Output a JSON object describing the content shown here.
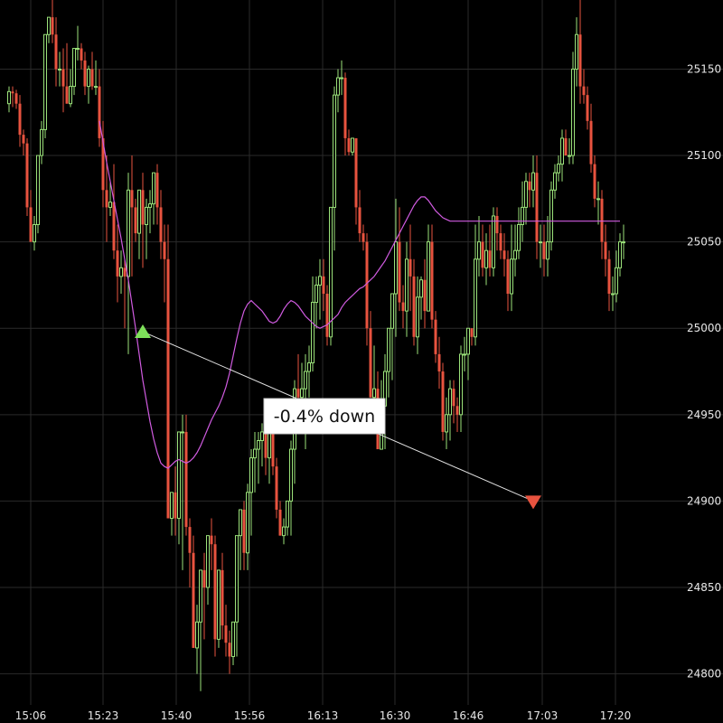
{
  "chart_data": {
    "type": "candlestick",
    "title": "",
    "xlabel": "",
    "ylabel": "",
    "ylim": [
      24782,
      25190
    ],
    "grid": true,
    "colors": {
      "background": "#000000",
      "grid": "#2a2a2a",
      "up": "#9be27a",
      "down": "#e8533f",
      "moving_average": "#d05be0",
      "signal_line": "#e0e0e0",
      "buy_marker": "#7ee05a",
      "sell_marker": "#e8533f"
    },
    "x_tick_labels": [
      "15:06",
      "15:23",
      "15:40",
      "15:56",
      "16:13",
      "16:30",
      "16:46",
      "17:03",
      "17:20"
    ],
    "y_ticks": [
      24800,
      24850,
      24900,
      24950,
      25000,
      25050,
      25100,
      25150
    ],
    "candles": {
      "time_index": [
        0,
        1,
        2,
        3,
        4,
        5,
        6,
        7,
        8,
        9,
        10,
        11,
        12,
        13,
        14,
        15,
        16,
        17,
        18,
        19,
        20,
        21,
        22,
        23,
        24,
        25,
        26,
        27,
        28,
        29,
        30,
        31,
        32,
        33,
        34,
        35,
        36,
        37,
        38,
        39,
        40,
        41,
        42,
        43,
        44,
        45,
        46,
        47,
        48,
        49,
        50,
        51,
        52,
        53,
        54,
        55,
        56,
        57,
        58,
        59,
        60,
        61,
        62,
        63,
        64,
        65,
        66,
        67,
        68,
        69,
        70,
        71,
        72,
        73,
        74,
        75,
        76,
        77,
        78,
        79,
        80,
        81,
        82,
        83,
        84,
        85,
        86,
        87,
        88,
        89,
        90,
        91,
        92,
        93,
        94,
        95,
        96,
        97,
        98,
        99,
        100,
        101,
        102,
        103,
        104,
        105,
        106,
        107,
        108,
        109,
        110,
        111,
        112,
        113,
        114,
        115,
        116,
        117,
        118,
        119,
        120,
        121,
        122,
        123,
        124,
        125,
        126,
        127,
        128,
        129,
        130,
        131,
        132,
        133,
        134,
        135,
        136,
        137,
        138,
        139,
        140,
        141,
        142,
        143,
        144,
        145,
        146,
        147,
        148,
        149,
        150,
        151,
        152,
        153,
        154,
        155,
        156,
        157,
        158,
        159,
        160,
        161,
        162,
        163,
        164,
        165,
        166,
        167,
        168,
        169,
        170
      ],
      "open": [
        25130,
        25137,
        25136,
        25130,
        25112,
        25107,
        25070,
        25050,
        25060,
        25100,
        25115,
        25170,
        25180,
        25170,
        25150,
        25150,
        25140,
        25130,
        25140,
        25162,
        25162,
        25155,
        25140,
        25150,
        25140,
        25140,
        25110,
        25080,
        25070,
        25073,
        25045,
        25030,
        25035,
        25030,
        25080,
        25070,
        25055,
        25080,
        25060,
        25070,
        25072,
        25090,
        25070,
        25050,
        25040,
        24890,
        24905,
        24890,
        24940,
        24940,
        24885,
        24870,
        24815,
        24830,
        24860,
        24850,
        24880,
        24875,
        24820,
        24860,
        24828,
        24818,
        24810,
        24830,
        24880,
        24895,
        24870,
        24905,
        24925,
        24930,
        24935,
        24940,
        24925,
        24943,
        24920,
        24895,
        24880,
        24885,
        24900,
        24930,
        24965,
        24960,
        24965,
        24975,
        24980,
        25015,
        25025,
        25030,
        25020,
        24995,
        25070,
        25135,
        25145,
        25145,
        25110,
        25102,
        25110,
        25070,
        25055,
        25050,
        25000,
        24960,
        24965,
        24930,
        24955,
        24975,
        25000,
        25020,
        25050,
        25015,
        25010,
        25040,
        25030,
        24995,
        25018,
        25028,
        25010,
        25050,
        25005,
        24985,
        24975,
        24940,
        24950,
        24965,
        24955,
        24950,
        24985,
        24985,
        25000,
        24995,
        25040,
        25050,
        25035,
        25045,
        25035,
        25065,
        25055,
        25045,
        25040,
        25020,
        25040,
        25045,
        25060,
        25070,
        25085,
        25080,
        25090,
        25050,
        25050,
        25040,
        25050,
        25080,
        25090,
        25095,
        25110,
        25100,
        25100,
        25150,
        25170,
        25140,
        25135,
        25120,
        25095,
        25075,
        25075,
        25050,
        25040,
        25020,
        25020,
        25035,
        25050
      ],
      "high": [
        25140,
        25140,
        25138,
        25135,
        25115,
        25110,
        25080,
        25065,
        25080,
        25120,
        25130,
        25180,
        25190,
        25180,
        25160,
        25162,
        25165,
        25150,
        25160,
        25175,
        25165,
        25160,
        25152,
        25160,
        25155,
        25150,
        25120,
        25100,
        25085,
        25095,
        25060,
        25045,
        25040,
        25090,
        25100,
        25075,
        25080,
        25090,
        25075,
        25080,
        25085,
        25095,
        25080,
        25060,
        25060,
        24900,
        24920,
        24900,
        24950,
        24950,
        24890,
        24880,
        24840,
        24850,
        24870,
        24870,
        24890,
        24880,
        24860,
        24870,
        24840,
        24825,
        24830,
        24880,
        24890,
        24900,
        24910,
        24930,
        24940,
        24940,
        24945,
        24945,
        24955,
        24950,
        24925,
        24900,
        24890,
        24890,
        24935,
        24970,
        24985,
        24980,
        24985,
        24990,
        25030,
        25030,
        25040,
        25040,
        25025,
        25070,
        25140,
        25150,
        25155,
        25148,
        25115,
        25110,
        25110,
        25080,
        25060,
        25055,
        25010,
        24990,
        24975,
        24970,
        24985,
        25000,
        25020,
        25075,
        25070,
        25025,
        25050,
        25060,
        25040,
        25030,
        25030,
        25040,
        25060,
        25060,
        25010,
        24995,
        24980,
        24960,
        24970,
        24970,
        24960,
        24990,
        24995,
        25000,
        25000,
        25060,
        25065,
        25060,
        25055,
        25060,
        25070,
        25070,
        25060,
        25055,
        25045,
        25060,
        25060,
        25070,
        25085,
        25090,
        25090,
        25100,
        25100,
        25060,
        25060,
        25065,
        25085,
        25095,
        25100,
        25115,
        25115,
        25110,
        25160,
        25180,
        25195,
        25150,
        25140,
        25130,
        25100,
        25085,
        25080,
        25060,
        25045,
        25030,
        25045,
        25055,
        25060
      ],
      "low": [
        25125,
        25128,
        25127,
        25105,
        25100,
        25065,
        25050,
        25045,
        25055,
        25095,
        25110,
        25165,
        25165,
        25140,
        25140,
        25125,
        25130,
        25128,
        25135,
        25155,
        25150,
        25135,
        25130,
        25138,
        25135,
        25105,
        25070,
        25050,
        25065,
        25040,
        25015,
        25020,
        25000,
        24985,
        25030,
        25050,
        25040,
        25035,
        25040,
        25055,
        25060,
        25060,
        25040,
        25015,
        24890,
        24880,
        24880,
        24875,
        24860,
        24880,
        24850,
        24815,
        24800,
        24790,
        24820,
        24840,
        24860,
        24810,
        24815,
        24820,
        24810,
        24800,
        24805,
        24810,
        24860,
        24860,
        24860,
        24880,
        24905,
        24910,
        24920,
        24915,
        24910,
        24915,
        24890,
        24880,
        24875,
        24880,
        24880,
        24910,
        24940,
        24950,
        24930,
        24960,
        24975,
        25000,
        25005,
        25010,
        24990,
        24990,
        25045,
        25125,
        25135,
        25100,
        25100,
        25100,
        25060,
        25050,
        25045,
        24990,
        24960,
        24950,
        24940,
        24930,
        24930,
        24960,
        24970,
        24995,
        25010,
        25000,
        24995,
        25010,
        24990,
        24985,
        25005,
        25000,
        25010,
        25000,
        24980,
        24965,
        24935,
        24930,
        24935,
        24945,
        24940,
        24940,
        24975,
        24970,
        24990,
        24990,
        25030,
        25030,
        25025,
        25030,
        25030,
        25045,
        25040,
        25030,
        25010,
        25010,
        25030,
        25040,
        25050,
        25060,
        25070,
        25070,
        25040,
        25035,
        25030,
        25030,
        25045,
        25075,
        25085,
        25085,
        25100,
        25095,
        25095,
        25140,
        25130,
        25130,
        25115,
        25090,
        25070,
        25060,
        25040,
        25030,
        25010,
        25010,
        25015,
        25030,
        25040
      ],
      "close": [
        25137,
        25136,
        25130,
        25112,
        25107,
        25070,
        25050,
        25060,
        25100,
        25115,
        25170,
        25180,
        25170,
        25150,
        25150,
        25140,
        25130,
        25140,
        25162,
        25162,
        25155,
        25140,
        25150,
        25140,
        25140,
        25110,
        25080,
        25070,
        25073,
        25045,
        25030,
        25035,
        25030,
        25080,
        25070,
        25055,
        25080,
        25060,
        25070,
        25072,
        25090,
        25070,
        25050,
        25040,
        24890,
        24905,
        24890,
        24940,
        24940,
        24885,
        24870,
        24815,
        24830,
        24860,
        24850,
        24880,
        24875,
        24820,
        24860,
        24828,
        24818,
        24810,
        24830,
        24880,
        24895,
        24870,
        24905,
        24925,
        24930,
        24935,
        24940,
        24925,
        24943,
        24920,
        24895,
        24880,
        24885,
        24900,
        24930,
        24965,
        24960,
        24965,
        24975,
        24980,
        25015,
        25025,
        25030,
        25020,
        24995,
        25070,
        25135,
        25145,
        25145,
        25110,
        25102,
        25110,
        25070,
        25055,
        25050,
        25000,
        24960,
        24965,
        24930,
        24955,
        24975,
        25000,
        25020,
        25050,
        25015,
        25010,
        25040,
        25030,
        24995,
        25018,
        25028,
        25010,
        25050,
        25005,
        24985,
        24975,
        24940,
        24950,
        24965,
        24955,
        24950,
        24985,
        24985,
        25000,
        24995,
        25040,
        25050,
        25035,
        25045,
        25035,
        25065,
        25055,
        25045,
        25040,
        25020,
        25040,
        25045,
        25060,
        25070,
        25085,
        25080,
        25090,
        25050,
        25050,
        25040,
        25050,
        25080,
        25090,
        25095,
        25110,
        25100,
        25100,
        25150,
        25170,
        25140,
        25135,
        25120,
        25095,
        25075,
        25075,
        25050,
        25040,
        25020,
        25020,
        25035,
        25050,
        25050
      ]
    },
    "moving_average": {
      "start_index": 25,
      "values": [
        25120,
        25108,
        25096,
        25085,
        25074,
        25063,
        25052,
        25040,
        25028,
        25014,
        25000,
        24985,
        24970,
        24958,
        24946,
        24936,
        24928,
        24922,
        24920,
        24919,
        24921,
        24923,
        24924,
        24923,
        24922,
        24923,
        24925,
        24928,
        24932,
        24937,
        24942,
        24947,
        24951,
        24955,
        24960,
        24966,
        24974,
        24984,
        24994,
        25003,
        25010,
        25014,
        25016,
        25014,
        25012,
        25010,
        25007,
        25004,
        25003,
        25004,
        25007,
        25011,
        25014,
        25016,
        25015,
        25013,
        25010,
        25007,
        25005,
        25003,
        25001,
        25000,
        25001,
        25002,
        25004,
        25006,
        25008,
        25012,
        25015,
        25017,
        25019,
        25021,
        25023,
        25024,
        25026,
        25028,
        25030,
        25033,
        25036,
        25039,
        25043,
        25047,
        25051,
        25055,
        25059,
        25063,
        25067,
        25071,
        25074,
        25076,
        25076,
        25074,
        25071,
        25068,
        25066,
        25064,
        25063,
        25062,
        25062,
        25062,
        25062,
        25062,
        25062,
        25062,
        25062,
        25062,
        25062,
        25062,
        25062,
        25062,
        25062,
        25062,
        25062,
        25062,
        25062,
        25062,
        25062,
        25062,
        25062,
        25062,
        25062,
        25062,
        25062,
        25062,
        25062,
        25062,
        25062,
        25062,
        25062,
        25062,
        25062,
        25062,
        25062,
        25062,
        25062,
        25062,
        25062,
        25062,
        25062,
        25062,
        25062,
        25062,
        25062,
        25062,
        25062
      ]
    },
    "signal": {
      "entry": {
        "time_index": 37,
        "price": 24998
      },
      "exit": {
        "time_index": 145,
        "price": 24900
      },
      "label": "-0.4% down"
    }
  }
}
